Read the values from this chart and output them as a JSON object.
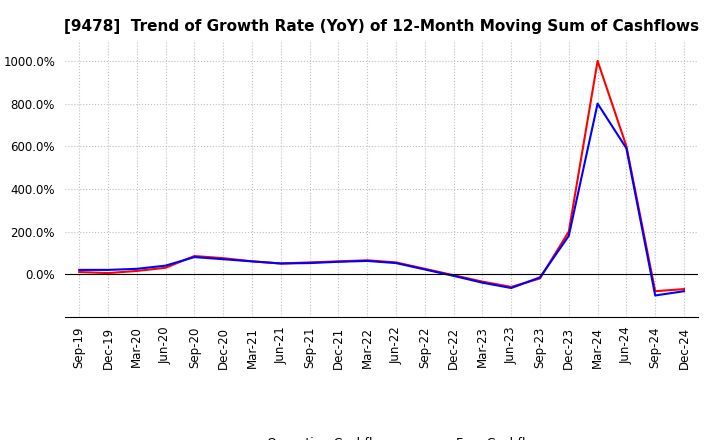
{
  "title": "[9478]  Trend of Growth Rate (YoY) of 12-Month Moving Sum of Cashflows",
  "title_fontsize": 11,
  "ylim": [
    -200,
    1100
  ],
  "yticks": [
    0.0,
    200.0,
    400.0,
    600.0,
    800.0,
    1000.0
  ],
  "ytick_labels": [
    "0.0%",
    "200.0%",
    "400.0%",
    "600.0%",
    "800.0%",
    "1000.0%"
  ],
  "x_labels": [
    "Sep-19",
    "Dec-19",
    "Mar-20",
    "Jun-20",
    "Sep-20",
    "Dec-20",
    "Mar-21",
    "Jun-21",
    "Sep-21",
    "Dec-21",
    "Mar-22",
    "Jun-22",
    "Sep-22",
    "Dec-22",
    "Mar-23",
    "Jun-23",
    "Sep-23",
    "Dec-23",
    "Mar-24",
    "Jun-24",
    "Sep-24",
    "Dec-24"
  ],
  "operating_cashflow": [
    10,
    5,
    15,
    30,
    85,
    75,
    60,
    50,
    55,
    60,
    65,
    55,
    25,
    -5,
    -35,
    -60,
    -20,
    200,
    1000,
    600,
    -80,
    -70
  ],
  "free_cashflow": [
    20,
    20,
    25,
    40,
    80,
    70,
    60,
    50,
    52,
    58,
    62,
    52,
    22,
    -8,
    -40,
    -65,
    -15,
    180,
    800,
    590,
    -100,
    -80
  ],
  "operating_color": "#ff0000",
  "free_color": "#0000ff",
  "background_color": "#ffffff",
  "grid_color": "#c0c0c0",
  "line_width": 1.5,
  "tick_fontsize": 8.5,
  "legend_fontsize": 9
}
